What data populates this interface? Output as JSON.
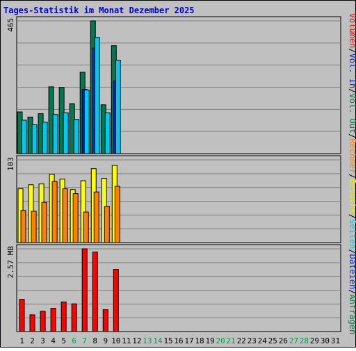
{
  "chart_data": {
    "title": "Tages-Statistik im Monat Dezember 2025",
    "type": "bar",
    "x": [
      "1",
      "2",
      "3",
      "4",
      "5",
      "6",
      "7",
      "8",
      "9",
      "10",
      "11",
      "12",
      "13",
      "14",
      "15",
      "16",
      "17",
      "18",
      "19",
      "20",
      "21",
      "22",
      "23",
      "24",
      "25",
      "26",
      "27",
      "28",
      "29",
      "30",
      "31"
    ],
    "weekend_days": [
      "6",
      "7",
      "13",
      "14",
      "20",
      "21",
      "27",
      "28"
    ],
    "panels": [
      {
        "axis_label": "465",
        "ylim": [
          0,
          465
        ],
        "series": [
          {
            "name": "Anfragen",
            "color": "#007850",
            "values": [
              146,
              128,
              140,
              234,
              232,
              175,
              285,
              465,
              171,
              378,
              0,
              0,
              0,
              0,
              0,
              0,
              0,
              0,
              0,
              0,
              0,
              0,
              0,
              0,
              0,
              0,
              0,
              0,
              0,
              0,
              0
            ]
          },
          {
            "name": "Dateien",
            "color": "#0028e0",
            "values": [
              0,
              0,
              0,
              0,
              0,
              0,
              225,
              370,
              0,
              255,
              0,
              0,
              0,
              0,
              0,
              0,
              0,
              0,
              0,
              0,
              0,
              0,
              0,
              0,
              0,
              0,
              0,
              0,
              0,
              0,
              0
            ]
          },
          {
            "name": "Seiten",
            "color": "#00c8f0",
            "values": [
              117,
              101,
              110,
              137,
              143,
              120,
              223,
              407,
              143,
              327,
              0,
              0,
              0,
              0,
              0,
              0,
              0,
              0,
              0,
              0,
              0,
              0,
              0,
              0,
              0,
              0,
              0,
              0,
              0,
              0,
              0
            ]
          }
        ]
      },
      {
        "axis_label": "103",
        "ylim": [
          0,
          103
        ],
        "series": [
          {
            "name": "Besuche",
            "color": "#ffff00",
            "values": [
              67,
              72,
              73,
              85,
              79,
              66,
              77,
              92,
              80,
              96,
              0,
              0,
              0,
              0,
              0,
              0,
              0,
              0,
              0,
              0,
              0,
              0,
              0,
              0,
              0,
              0,
              0,
              0,
              0,
              0,
              0
            ]
          },
          {
            "name": "Rechner",
            "color": "#ff8000",
            "values": [
              40,
              39,
              50,
              76,
              67,
              61,
              38,
              63,
              45,
              70,
              0,
              0,
              0,
              0,
              0,
              0,
              0,
              0,
              0,
              0,
              0,
              0,
              0,
              0,
              0,
              0,
              0,
              0,
              0,
              0,
              0
            ]
          }
        ]
      },
      {
        "axis_label": "2.57 MB",
        "ylim": [
          0,
          2.57
        ],
        "series": [
          {
            "name": "Volumen",
            "color": "#ff0000",
            "values": [
              1.0,
              0.52,
              0.63,
              0.72,
              0.92,
              0.86,
              2.57,
              2.47,
              0.68,
              1.93,
              0,
              0,
              0,
              0,
              0,
              0,
              0,
              0,
              0,
              0,
              0,
              0,
              0,
              0,
              0,
              0,
              0,
              0,
              0,
              0,
              0
            ]
          }
        ]
      }
    ],
    "side_legend": [
      {
        "label": "Volumen",
        "color": "#ff0000"
      },
      {
        "label": "/",
        "color": "#000000"
      },
      {
        "label": "Vol. In",
        "color": "#0028e0"
      },
      {
        "label": "/",
        "color": "#000000"
      },
      {
        "label": "Vol. Out",
        "color": "#007850"
      },
      {
        "label": "/",
        "color": "#000000"
      },
      {
        "label": "Rechner",
        "color": "#ff8000"
      },
      {
        "label": "/",
        "color": "#000000"
      },
      {
        "label": "Besuche",
        "color": "#e8e800"
      },
      {
        "label": "/",
        "color": "#000000"
      },
      {
        "label": "Seiten",
        "color": "#00c8f0"
      },
      {
        "label": "/",
        "color": "#000000"
      },
      {
        "label": "Dateien",
        "color": "#0028e0"
      },
      {
        "label": "/",
        "color": "#000000"
      },
      {
        "label": "Anfragen",
        "color": "#007850"
      }
    ]
  }
}
